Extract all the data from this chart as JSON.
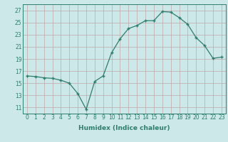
{
  "x": [
    0,
    1,
    2,
    3,
    4,
    5,
    6,
    7,
    8,
    9,
    10,
    11,
    12,
    13,
    14,
    15,
    16,
    17,
    18,
    19,
    20,
    21,
    22,
    23
  ],
  "y": [
    16.2,
    16.1,
    15.9,
    15.8,
    15.5,
    15.0,
    13.3,
    10.7,
    15.3,
    16.2,
    20.0,
    22.3,
    24.0,
    24.5,
    25.3,
    25.3,
    26.8,
    26.7,
    25.8,
    24.7,
    22.5,
    21.2,
    19.1,
    19.3
  ],
  "line_color": "#2e7d6e",
  "marker": "+",
  "bg_color": "#cce8e8",
  "grid_color": "#c0a8a8",
  "xlabel": "Humidex (Indice chaleur)",
  "ylabel": "",
  "xlim": [
    -0.5,
    23.5
  ],
  "ylim": [
    10.0,
    28.0
  ],
  "yticks": [
    11,
    13,
    15,
    17,
    19,
    21,
    23,
    25,
    27
  ],
  "xticks": [
    0,
    1,
    2,
    3,
    4,
    5,
    6,
    7,
    8,
    9,
    10,
    11,
    12,
    13,
    14,
    15,
    16,
    17,
    18,
    19,
    20,
    21,
    22,
    23
  ],
  "tick_fontsize": 5.5,
  "xlabel_fontsize": 6.5,
  "marker_size": 3.5,
  "linewidth": 0.9
}
